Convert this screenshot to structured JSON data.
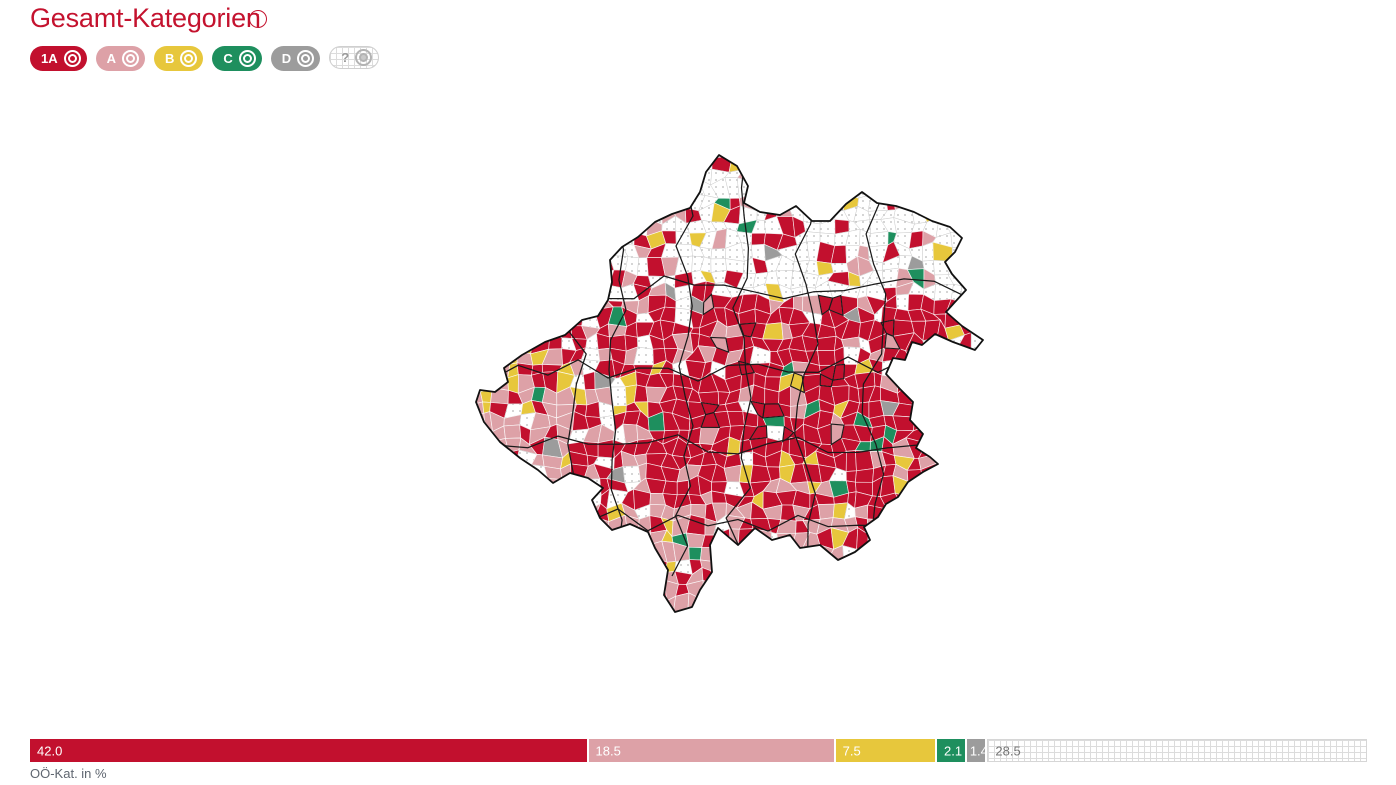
{
  "header": {
    "title": "Gesamt-Kategorien",
    "info_icon": "i"
  },
  "categories": [
    {
      "key": "1A",
      "label": "1A",
      "color": "#c2102e",
      "text_color": "#ffffff",
      "pattern": "solid"
    },
    {
      "key": "A",
      "label": "A",
      "color": "#dda1a7",
      "text_color": "#ffffff",
      "pattern": "solid"
    },
    {
      "key": "B",
      "label": "B",
      "color": "#e7c73c",
      "text_color": "#ffffff",
      "pattern": "solid"
    },
    {
      "key": "C",
      "label": "C",
      "color": "#1e8f5e",
      "text_color": "#ffffff",
      "pattern": "solid"
    },
    {
      "key": "D",
      "label": "D",
      "color": "#9c9c9c",
      "text_color": "#ffffff",
      "pattern": "solid"
    },
    {
      "key": "?",
      "label": "?",
      "color": "#ffffff",
      "text_color": "#9a9a9a",
      "pattern": "grid"
    }
  ],
  "chart_data": {
    "type": "bar",
    "variant": "stacked-horizontal-100pct",
    "categories": [
      "1A",
      "A",
      "B",
      "C",
      "D",
      "?"
    ],
    "values": [
      42.0,
      18.5,
      7.5,
      2.1,
      1.4,
      28.5
    ],
    "labels": [
      "42.0",
      "18.5",
      "7.5",
      "2.1",
      "1.4",
      "28.5"
    ],
    "colors": [
      "#c2102e",
      "#dda1a7",
      "#e7c73c",
      "#1e8f5e",
      "#9c9c9c",
      "grid-pattern"
    ],
    "unit": "%",
    "xlim": [
      0,
      100
    ],
    "caption": "OÖ-Kat. in %"
  },
  "map": {
    "kind": "choropleth",
    "category_share_pct": {
      "1A": 42.0,
      "A": 18.5,
      "B": 7.5,
      "C": 2.1,
      "D": 1.4,
      "?": 28.5
    },
    "unknown_fill": "dotted-white",
    "municipality_border_color": "#ffffff",
    "district_border_color": "#1a1a1a"
  }
}
